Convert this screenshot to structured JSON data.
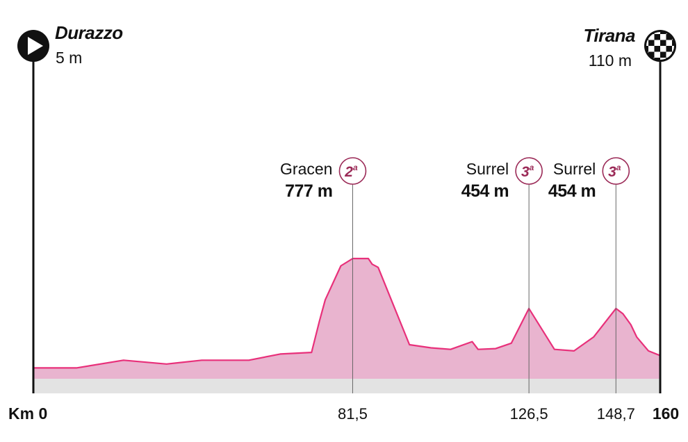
{
  "chart_data": {
    "type": "area",
    "title": "",
    "xlabel": "",
    "ylabel": "",
    "xlim": [
      0,
      160
    ],
    "ylim": [
      0,
      1500
    ],
    "grid": false,
    "colors": {
      "fill": "#e9b4cf",
      "line": "#e8307a",
      "badge": "#9b2a57",
      "base": "#e3e3e3"
    },
    "start": {
      "town": "Durazzo",
      "elevation": "5 m",
      "icon": "play-icon"
    },
    "finish": {
      "town": "Tirana",
      "elevation": "110 m",
      "icon": "checkered-flag-icon"
    },
    "x_ticks": [
      {
        "value": 0,
        "label": "Km 0",
        "end": true
      },
      {
        "value": 81.5,
        "label": "81,5"
      },
      {
        "value": 126.5,
        "label": "126,5"
      },
      {
        "value": 148.7,
        "label": "148,7"
      },
      {
        "value": 160,
        "label": "160",
        "end": true
      }
    ],
    "climbs": [
      {
        "name": "Gracen",
        "altitude": "777 m",
        "category": "2",
        "km": 81.5
      },
      {
        "name": "Surrel",
        "altitude": "454 m",
        "category": "3",
        "km": 126.5
      },
      {
        "name": "Surrel",
        "altitude": "454 m",
        "category": "3",
        "km": 148.7
      }
    ],
    "profile": {
      "x": [
        0,
        11,
        23,
        34,
        43,
        55,
        63,
        71,
        73,
        74.5,
        78.5,
        81.5,
        85.5,
        86.5,
        88,
        96,
        101.5,
        106.5,
        112,
        113.5,
        118,
        122,
        126.5,
        133,
        138,
        143,
        148.7,
        150.5,
        152.5,
        154,
        157,
        160
      ],
      "y": [
        70,
        70,
        120,
        95,
        120,
        120,
        160,
        170,
        370,
        510,
        730,
        777,
        777,
        740,
        720,
        220,
        200,
        190,
        240,
        190,
        195,
        230,
        454,
        190,
        180,
        270,
        454,
        420,
        350,
        270,
        180,
        150
      ]
    }
  }
}
